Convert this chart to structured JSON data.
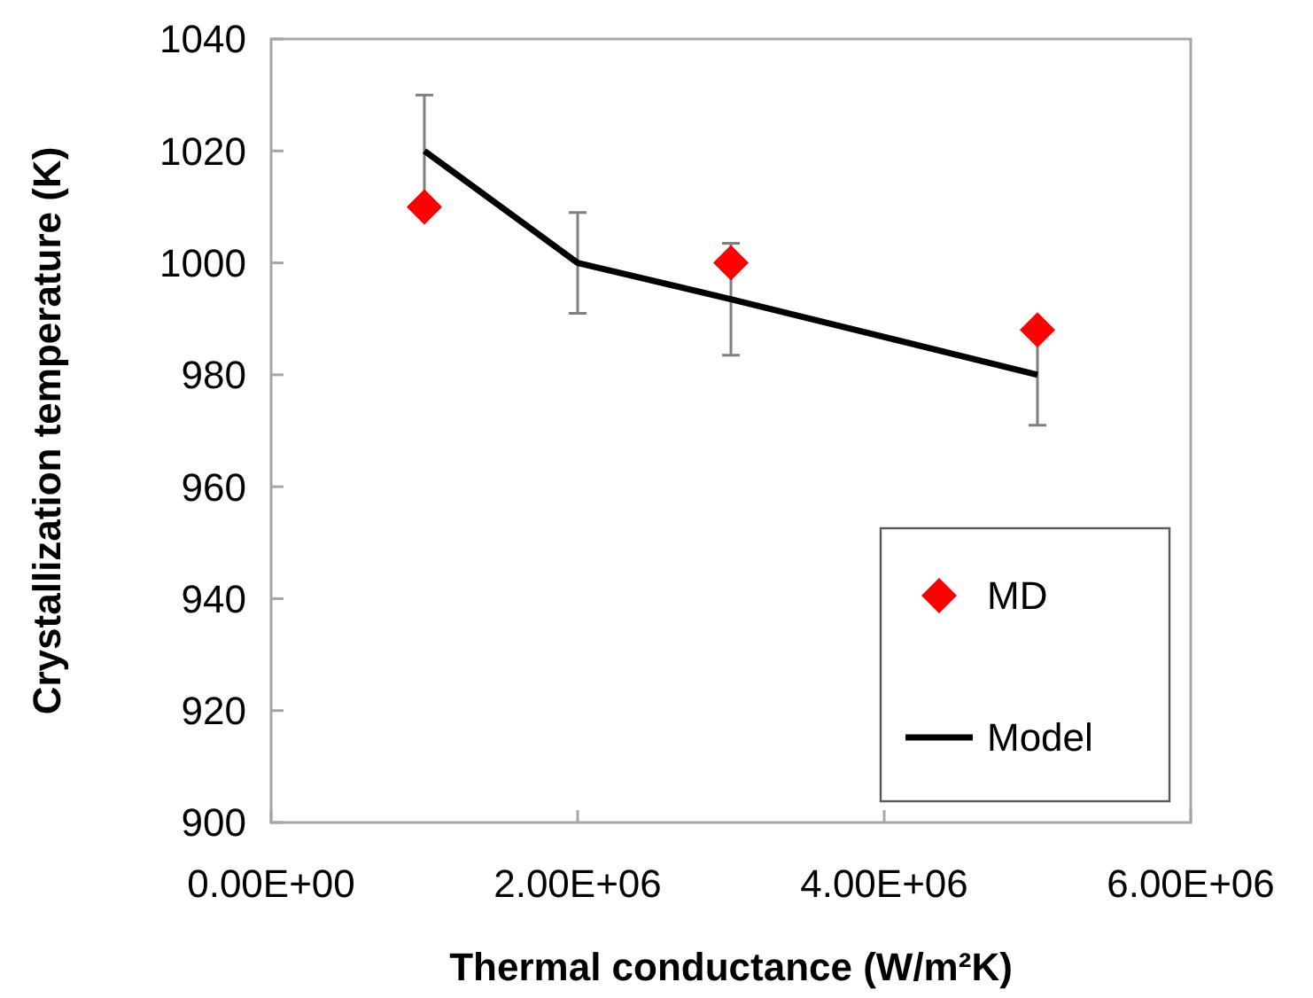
{
  "chart_data": {
    "type": "scatter",
    "xlabel": "Thermal conductance (W/m²K)",
    "ylabel": "Crystallization temperature (K)",
    "xlim": [
      0,
      6000000
    ],
    "xticks": [
      {
        "value": 0,
        "label": "0.00E+00"
      },
      {
        "value": 2000000,
        "label": "2.00E+06"
      },
      {
        "value": 4000000,
        "label": "4.00E+06"
      },
      {
        "value": 6000000,
        "label": "6.00E+06"
      }
    ],
    "ylim": [
      900,
      1040
    ],
    "yticks": [
      900,
      920,
      940,
      960,
      980,
      1000,
      1020,
      1040
    ],
    "grid": false,
    "legend": "bottom right",
    "series": [
      {
        "name": "MD",
        "color": "#ff0000",
        "marker": "diamond",
        "x": [
          1000000,
          3000000,
          5000000
        ],
        "values": [
          1010,
          1000,
          988
        ]
      },
      {
        "name": "Model",
        "type": "line",
        "color": "#000000",
        "marker": "none",
        "x": [
          1000000,
          2000000,
          3000000,
          5000000
        ],
        "values": [
          1020,
          1000,
          993.5,
          980
        ],
        "errors": [
          10,
          9,
          10,
          9
        ]
      }
    ]
  }
}
